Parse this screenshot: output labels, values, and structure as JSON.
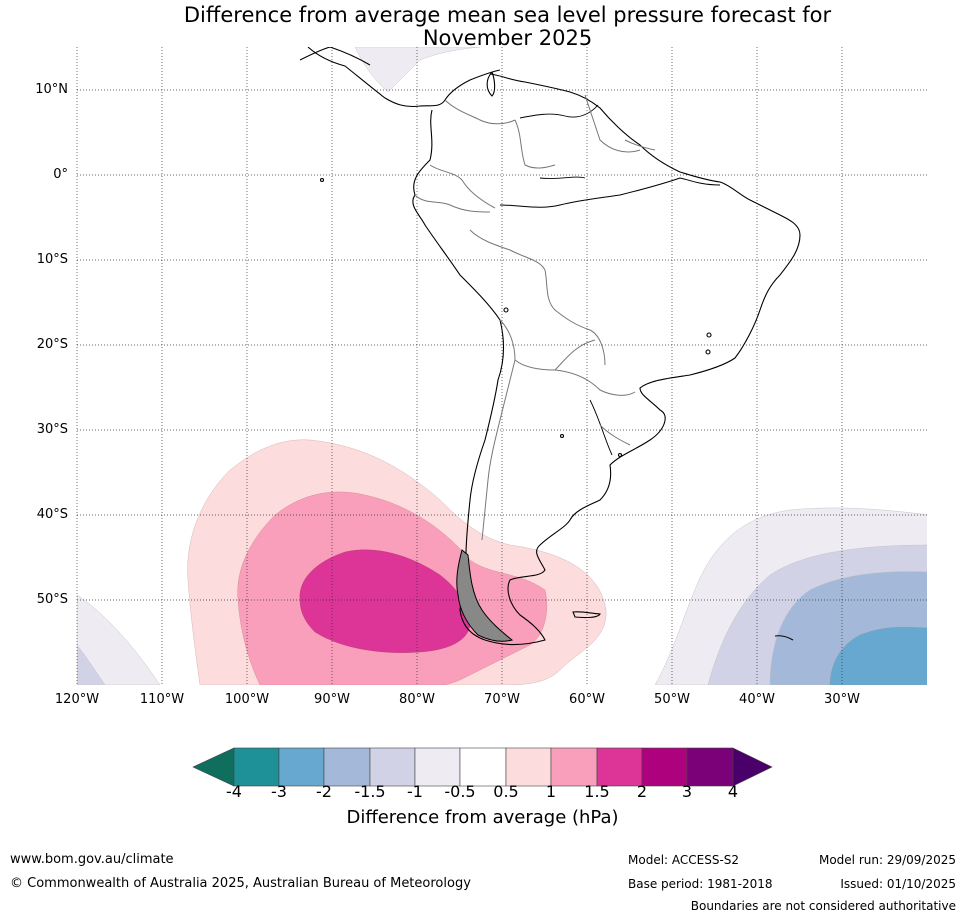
{
  "title_line1": "Difference from average mean sea level pressure forecast for",
  "title_line2": "November 2025",
  "map": {
    "lat_labels": [
      "10°N",
      "0°",
      "10°S",
      "20°S",
      "30°S",
      "40°S",
      "50°S"
    ],
    "lon_labels": [
      "120°W",
      "110°W",
      "100°W",
      "90°W",
      "80°W",
      "70°W",
      "60°W",
      "50°W",
      "40°W",
      "30°W"
    ]
  },
  "legend": {
    "ticks": [
      "-4",
      "-3",
      "-2",
      "-1.5",
      "-1",
      "-0.5",
      "0.5",
      "1",
      "1.5",
      "2",
      "3",
      "4"
    ],
    "colors": [
      "#0f6e5e",
      "#1d9098",
      "#66a8cf",
      "#a4b9d9",
      "#d2d2e6",
      "#efebf2",
      "#ffffff",
      "#fddcdd",
      "#f99fbb",
      "#dd3497",
      "#ae017e",
      "#7a0177",
      "#49006a"
    ],
    "label": "Difference from average (hPa)"
  },
  "footer": {
    "website": "www.bom.gov.au/climate",
    "copyright": "© Commonwealth of Australia 2025, Australian Bureau of Meteorology",
    "model": "Model: ACCESS-S2",
    "base_period": "Base period: 1981-2018",
    "model_run": "Model run: 29/09/2025",
    "issued": "Issued: 01/10/2025",
    "disclaimer": "Boundaries are not considered authoritative"
  }
}
